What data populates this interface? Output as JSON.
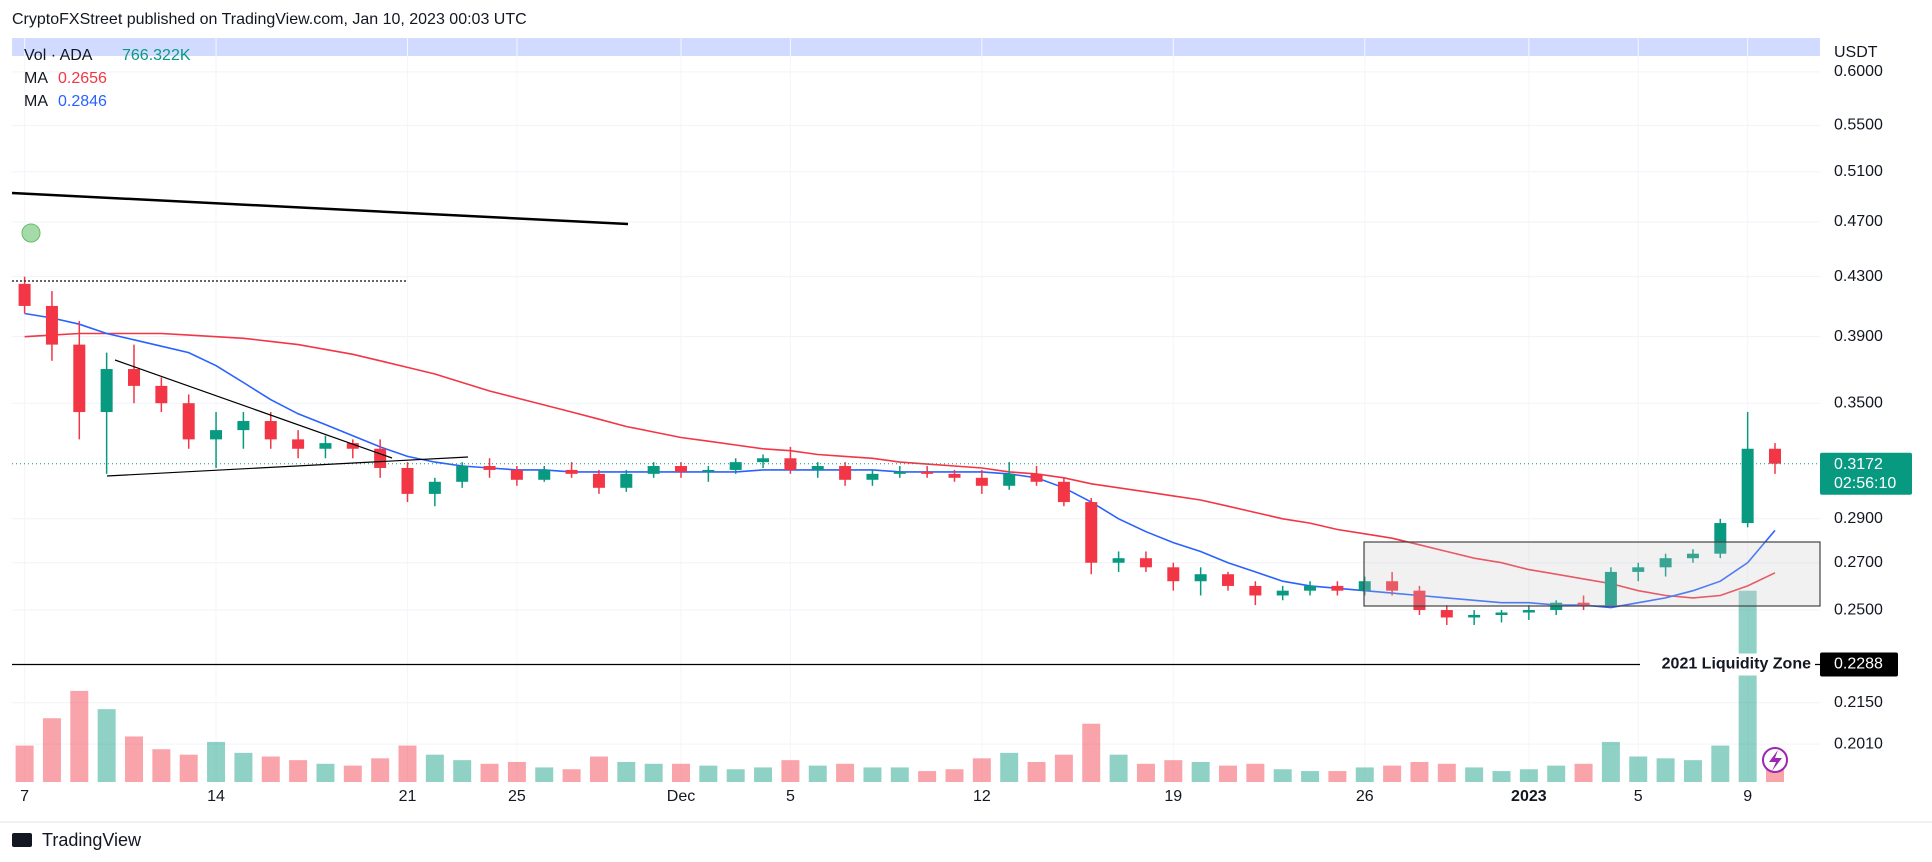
{
  "header": {
    "title": "CryptoFXStreet published on TradingView.com, Jan 10, 2023 00:03 UTC"
  },
  "chart_data": {
    "type": "candlestick",
    "categories": [
      "7",
      null,
      null,
      null,
      null,
      null,
      null,
      "14",
      null,
      null,
      null,
      null,
      null,
      null,
      "21",
      null,
      null,
      null,
      "25",
      null,
      null,
      null,
      null,
      null,
      "Dec",
      null,
      null,
      null,
      "5",
      null,
      null,
      null,
      null,
      null,
      null,
      "12",
      null,
      null,
      null,
      null,
      null,
      null,
      "19",
      null,
      null,
      null,
      null,
      null,
      null,
      "26",
      null,
      null,
      null,
      null,
      null,
      "2023",
      null,
      null,
      null,
      "5",
      null,
      null,
      null,
      "9",
      null
    ],
    "open": [
      0.425,
      0.41,
      0.385,
      0.345,
      0.37,
      0.36,
      0.35,
      0.33,
      0.335,
      0.34,
      0.33,
      0.325,
      0.328,
      0.325,
      0.315,
      0.302,
      0.308,
      0.316,
      0.314,
      0.309,
      0.314,
      0.312,
      0.305,
      0.312,
      0.316,
      0.313,
      0.314,
      0.318,
      0.32,
      0.314,
      0.316,
      0.309,
      0.312,
      0.313,
      0.312,
      0.31,
      0.306,
      0.312,
      0.308,
      0.298,
      0.27,
      0.272,
      0.268,
      0.262,
      0.265,
      0.26,
      0.256,
      0.258,
      0.26,
      0.258,
      0.262,
      0.258,
      0.25,
      0.247,
      0.248,
      0.249,
      0.25,
      0.253,
      0.252,
      0.266,
      0.268,
      0.272,
      0.274,
      0.288,
      0.325
    ],
    "high": [
      0.43,
      0.42,
      0.4,
      0.38,
      0.385,
      0.365,
      0.355,
      0.345,
      0.345,
      0.345,
      0.335,
      0.332,
      0.33,
      0.33,
      0.318,
      0.31,
      0.318,
      0.32,
      0.316,
      0.316,
      0.318,
      0.314,
      0.314,
      0.318,
      0.318,
      0.316,
      0.32,
      0.322,
      0.326,
      0.318,
      0.318,
      0.314,
      0.316,
      0.316,
      0.314,
      0.314,
      0.318,
      0.316,
      0.31,
      0.3,
      0.275,
      0.275,
      0.27,
      0.268,
      0.266,
      0.262,
      0.26,
      0.262,
      0.262,
      0.264,
      0.266,
      0.26,
      0.252,
      0.25,
      0.25,
      0.252,
      0.254,
      0.256,
      0.268,
      0.27,
      0.274,
      0.276,
      0.29,
      0.345,
      0.328
    ],
    "low": [
      0.405,
      0.375,
      0.33,
      0.312,
      0.35,
      0.345,
      0.325,
      0.315,
      0.325,
      0.325,
      0.32,
      0.32,
      0.32,
      0.31,
      0.298,
      0.296,
      0.305,
      0.31,
      0.306,
      0.308,
      0.31,
      0.302,
      0.303,
      0.31,
      0.31,
      0.308,
      0.312,
      0.315,
      0.312,
      0.31,
      0.306,
      0.306,
      0.31,
      0.31,
      0.308,
      0.302,
      0.304,
      0.306,
      0.296,
      0.265,
      0.266,
      0.266,
      0.258,
      0.256,
      0.258,
      0.252,
      0.254,
      0.256,
      0.256,
      0.256,
      0.256,
      0.248,
      0.244,
      0.244,
      0.245,
      0.246,
      0.248,
      0.25,
      0.252,
      0.262,
      0.264,
      0.27,
      0.272,
      0.286,
      0.312
    ],
    "close": [
      0.41,
      0.385,
      0.345,
      0.37,
      0.36,
      0.35,
      0.33,
      0.335,
      0.34,
      0.33,
      0.325,
      0.328,
      0.325,
      0.315,
      0.302,
      0.308,
      0.316,
      0.314,
      0.309,
      0.314,
      0.312,
      0.305,
      0.312,
      0.316,
      0.313,
      0.314,
      0.318,
      0.32,
      0.314,
      0.316,
      0.309,
      0.312,
      0.313,
      0.312,
      0.31,
      0.306,
      0.312,
      0.308,
      0.298,
      0.27,
      0.272,
      0.268,
      0.262,
      0.265,
      0.26,
      0.256,
      0.258,
      0.26,
      0.258,
      0.262,
      0.258,
      0.25,
      0.247,
      0.248,
      0.249,
      0.25,
      0.253,
      0.252,
      0.266,
      0.268,
      0.272,
      0.274,
      0.288,
      0.325,
      0.3172
    ],
    "up_color": "#089981",
    "down_color": "#f23645",
    "series": [
      {
        "name": "MA",
        "color": "#f23645",
        "values": [
          0.39,
          0.391,
          0.392,
          0.392,
          0.392,
          0.392,
          0.391,
          0.39,
          0.389,
          0.387,
          0.385,
          0.382,
          0.379,
          0.375,
          0.371,
          0.367,
          0.362,
          0.357,
          0.353,
          0.349,
          0.345,
          0.341,
          0.337,
          0.334,
          0.331,
          0.329,
          0.327,
          0.325,
          0.324,
          0.322,
          0.321,
          0.32,
          0.318,
          0.317,
          0.316,
          0.315,
          0.313,
          0.312,
          0.31,
          0.307,
          0.305,
          0.303,
          0.301,
          0.299,
          0.296,
          0.293,
          0.29,
          0.288,
          0.285,
          0.283,
          0.281,
          0.278,
          0.275,
          0.272,
          0.27,
          0.267,
          0.265,
          0.263,
          0.261,
          0.258,
          0.256,
          0.255,
          0.256,
          0.26,
          0.2656
        ]
      },
      {
        "name": "MA",
        "color": "#2962ff",
        "values": [
          0.405,
          0.402,
          0.398,
          0.392,
          0.388,
          0.384,
          0.38,
          0.372,
          0.362,
          0.352,
          0.344,
          0.338,
          0.332,
          0.326,
          0.321,
          0.318,
          0.316,
          0.315,
          0.314,
          0.314,
          0.313,
          0.313,
          0.313,
          0.313,
          0.313,
          0.313,
          0.313,
          0.314,
          0.314,
          0.314,
          0.314,
          0.314,
          0.313,
          0.313,
          0.313,
          0.313,
          0.312,
          0.31,
          0.305,
          0.298,
          0.29,
          0.284,
          0.279,
          0.275,
          0.27,
          0.266,
          0.262,
          0.26,
          0.259,
          0.258,
          0.257,
          0.256,
          0.255,
          0.254,
          0.253,
          0.253,
          0.252,
          0.252,
          0.251,
          0.253,
          0.255,
          0.258,
          0.262,
          0.27,
          0.2846
        ]
      }
    ],
    "volume": {
      "name": "Vol · ADA",
      "ylim": [
        0,
        14000000
      ],
      "values": [
        2000000,
        3500000,
        5000000,
        4000000,
        2500000,
        1800000,
        1500000,
        2200000,
        1600000,
        1400000,
        1200000,
        1000000,
        900000,
        1300000,
        2000000,
        1500000,
        1200000,
        1000000,
        1100000,
        800000,
        700000,
        1400000,
        1100000,
        1000000,
        1000000,
        900000,
        700000,
        800000,
        1200000,
        900000,
        1000000,
        800000,
        800000,
        600000,
        700000,
        1300000,
        1600000,
        1100000,
        1500000,
        3200000,
        1500000,
        1000000,
        1200000,
        1100000,
        900000,
        1000000,
        700000,
        600000,
        600000,
        800000,
        900000,
        1100000,
        1000000,
        800000,
        600000,
        700000,
        900000,
        1000000,
        2200000,
        1400000,
        1300000,
        1200000,
        2000000,
        10500000,
        766322
      ],
      "value_labels": [
        null,
        null,
        null,
        null,
        null,
        null,
        null,
        null,
        null,
        null,
        null,
        null,
        null,
        null,
        null,
        null,
        null,
        null,
        null,
        null,
        null,
        null,
        null,
        null,
        null,
        null,
        null,
        null,
        null,
        null,
        null,
        null,
        null,
        null,
        null,
        null,
        null,
        null,
        null,
        null,
        null,
        null,
        null,
        null,
        null,
        null,
        null,
        null,
        null,
        null,
        null,
        null,
        null,
        null,
        null,
        null,
        null,
        null,
        null,
        null,
        null,
        null,
        null,
        null,
        "766.322K"
      ]
    },
    "ylim": [
      0.189,
      0.635
    ],
    "log_scale": true,
    "grid": true,
    "y_unit": "USDT",
    "yticks": [
      {
        "value": 0.6,
        "label": "0.6000"
      },
      {
        "value": 0.55,
        "label": "0.5500"
      },
      {
        "value": 0.51,
        "label": "0.5100"
      },
      {
        "value": 0.47,
        "label": "0.4700"
      },
      {
        "value": 0.43,
        "label": "0.4300"
      },
      {
        "value": 0.39,
        "label": "0.3900"
      },
      {
        "value": 0.35,
        "label": "0.3500"
      },
      {
        "value": 0.29,
        "label": "0.2900"
      },
      {
        "value": 0.27,
        "label": "0.2700"
      },
      {
        "value": 0.25,
        "label": "0.2500"
      },
      {
        "value": 0.215,
        "label": "0.2150"
      },
      {
        "value": 0.201,
        "label": "0.2010"
      }
    ],
    "countdown": "02:56:10",
    "annotations": [
      {
        "label": "2021 Liquidity Zone",
        "value": 0.2288
      }
    ]
  },
  "footer": {
    "brand": "TradingView"
  }
}
